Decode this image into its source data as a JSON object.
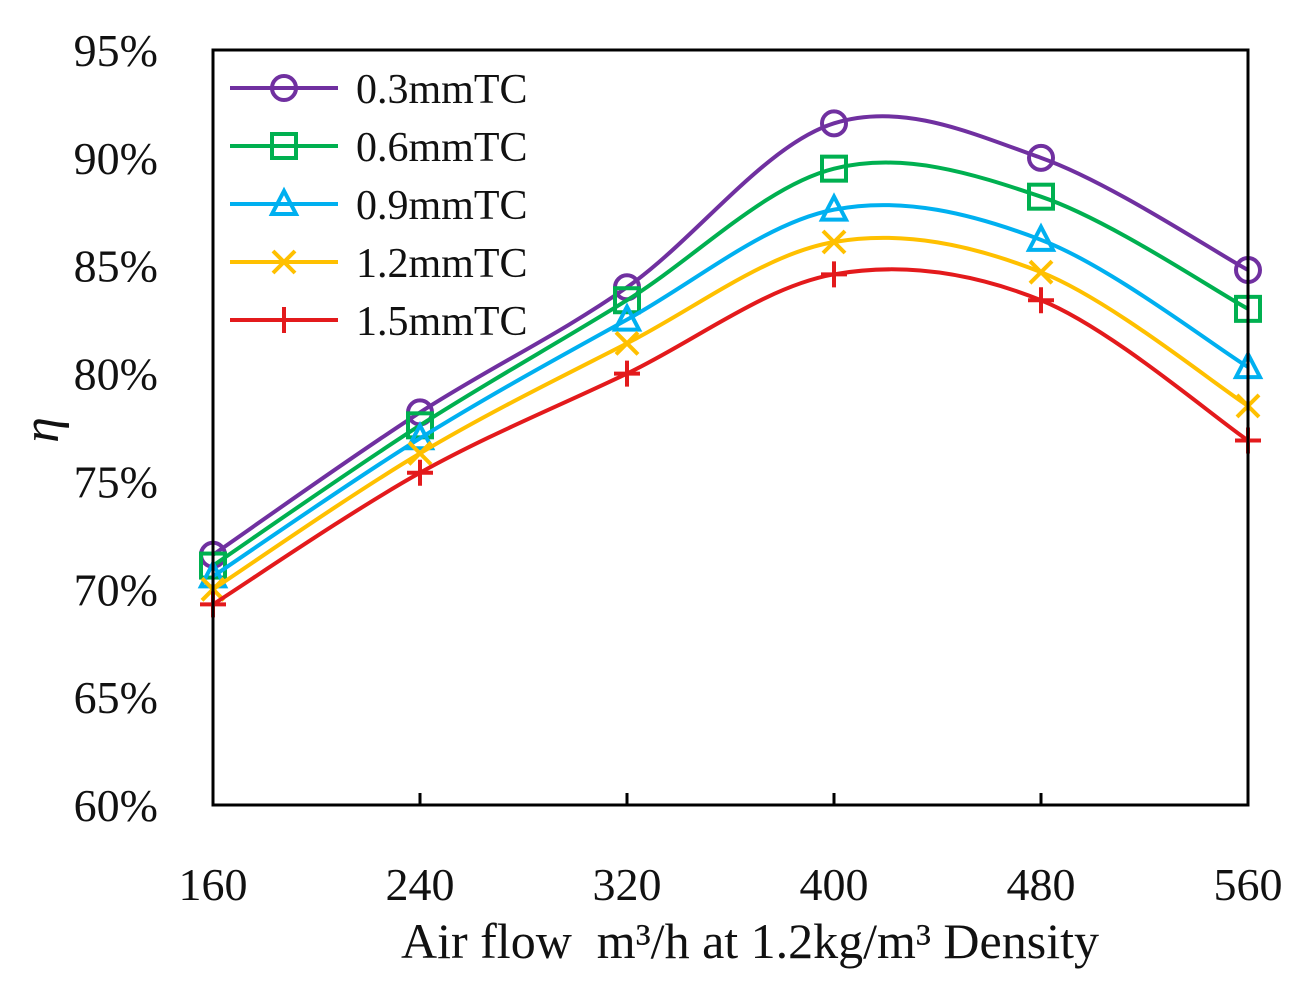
{
  "chart_data": {
    "type": "line",
    "title": "",
    "xlabel": "Air flow  m³/h at 1.2kg/m³ Density",
    "ylabel": "η",
    "x": [
      160,
      240,
      320,
      400,
      480,
      560
    ],
    "xlim": [
      160,
      560
    ],
    "ylim": [
      60,
      95
    ],
    "x_tick_labels": [
      "160",
      "240",
      "320",
      "400",
      "480",
      "560"
    ],
    "y_ticks": [
      60,
      65,
      70,
      75,
      80,
      85,
      90,
      95
    ],
    "y_tick_labels": [
      "60%",
      "65%",
      "70%",
      "75%",
      "80%",
      "85%",
      "90%",
      "95%"
    ],
    "grid": false,
    "legend_position": "top-left",
    "series": [
      {
        "name": "0.3mmTC",
        "color": "#7030a0",
        "marker": "circle",
        "values": [
          71.6,
          78.2,
          84.0,
          91.6,
          90.0,
          84.8
        ]
      },
      {
        "name": "0.6mmTC",
        "color": "#00b050",
        "marker": "square",
        "values": [
          71.1,
          77.6,
          83.4,
          89.5,
          88.2,
          83.0
        ]
      },
      {
        "name": "0.9mmTC",
        "color": "#00b0f0",
        "marker": "triangle",
        "values": [
          70.6,
          77.0,
          82.5,
          87.6,
          86.2,
          80.3
        ]
      },
      {
        "name": "1.2mmTC",
        "color": "#ffc000",
        "marker": "x",
        "values": [
          70.0,
          76.3,
          81.4,
          86.1,
          84.7,
          78.5
        ]
      },
      {
        "name": "1.5mmTC",
        "color": "#e31a1c",
        "marker": "plus",
        "values": [
          69.3,
          75.4,
          80.0,
          84.6,
          83.4,
          76.9
        ]
      }
    ]
  }
}
